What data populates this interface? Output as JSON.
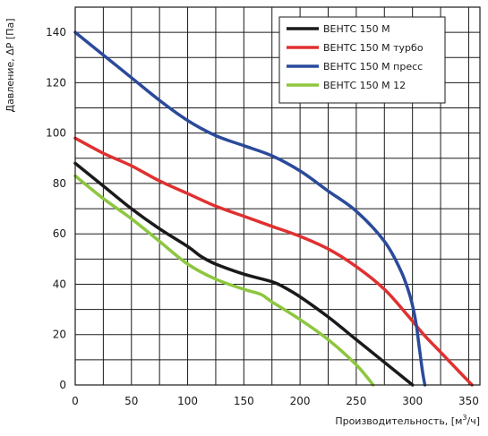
{
  "chart_data": {
    "type": "line",
    "xlabel_prefix": "Производительность, [м",
    "xlabel_sup": "3",
    "xlabel_suffix": "/ч]",
    "ylabel": "Давление, ΔP [Па]",
    "xlim": [
      0,
      360
    ],
    "ylim": [
      0,
      150
    ],
    "x_ticks": [
      0,
      50,
      100,
      150,
      200,
      250,
      300,
      350
    ],
    "y_ticks": [
      0,
      20,
      40,
      60,
      80,
      100,
      120,
      140
    ],
    "legend_position": "top-right",
    "grid": true,
    "series": [
      {
        "name": "ВЕНТС 150 М",
        "color": "#1a1a1a",
        "points": [
          [
            0,
            88
          ],
          [
            25,
            79
          ],
          [
            50,
            70
          ],
          [
            75,
            62
          ],
          [
            100,
            55
          ],
          [
            112,
            51
          ],
          [
            125,
            48
          ],
          [
            150,
            44
          ],
          [
            175,
            41
          ],
          [
            185,
            39
          ],
          [
            200,
            35
          ],
          [
            225,
            27
          ],
          [
            250,
            18
          ],
          [
            275,
            9
          ],
          [
            300,
            0
          ]
        ]
      },
      {
        "name": "ВЕНТС 150 М турбо",
        "color": "#e03030",
        "points": [
          [
            0,
            98
          ],
          [
            25,
            92
          ],
          [
            50,
            87
          ],
          [
            75,
            81
          ],
          [
            100,
            76
          ],
          [
            125,
            71
          ],
          [
            150,
            67
          ],
          [
            175,
            63
          ],
          [
            200,
            59
          ],
          [
            225,
            54
          ],
          [
            250,
            47
          ],
          [
            275,
            38
          ],
          [
            295,
            28
          ],
          [
            310,
            20
          ],
          [
            325,
            13
          ],
          [
            340,
            6
          ],
          [
            353,
            0
          ]
        ]
      },
      {
        "name": "ВЕНТС 150 М пресс",
        "color": "#2b4a9b",
        "points": [
          [
            0,
            140
          ],
          [
            25,
            131
          ],
          [
            50,
            122
          ],
          [
            75,
            113
          ],
          [
            100,
            105
          ],
          [
            125,
            99
          ],
          [
            150,
            95
          ],
          [
            175,
            91
          ],
          [
            200,
            85
          ],
          [
            225,
            77
          ],
          [
            250,
            69
          ],
          [
            275,
            57
          ],
          [
            290,
            45
          ],
          [
            298,
            35
          ],
          [
            303,
            25
          ],
          [
            306,
            15
          ],
          [
            309,
            5
          ],
          [
            311,
            0
          ]
        ]
      },
      {
        "name": "ВЕНТС 150 М  12",
        "color": "#8dc63f",
        "points": [
          [
            0,
            83
          ],
          [
            25,
            74
          ],
          [
            50,
            66
          ],
          [
            75,
            57
          ],
          [
            100,
            48
          ],
          [
            125,
            42
          ],
          [
            150,
            38
          ],
          [
            165,
            36
          ],
          [
            175,
            33
          ],
          [
            200,
            26
          ],
          [
            225,
            18
          ],
          [
            250,
            8
          ],
          [
            265,
            0
          ]
        ]
      }
    ]
  }
}
